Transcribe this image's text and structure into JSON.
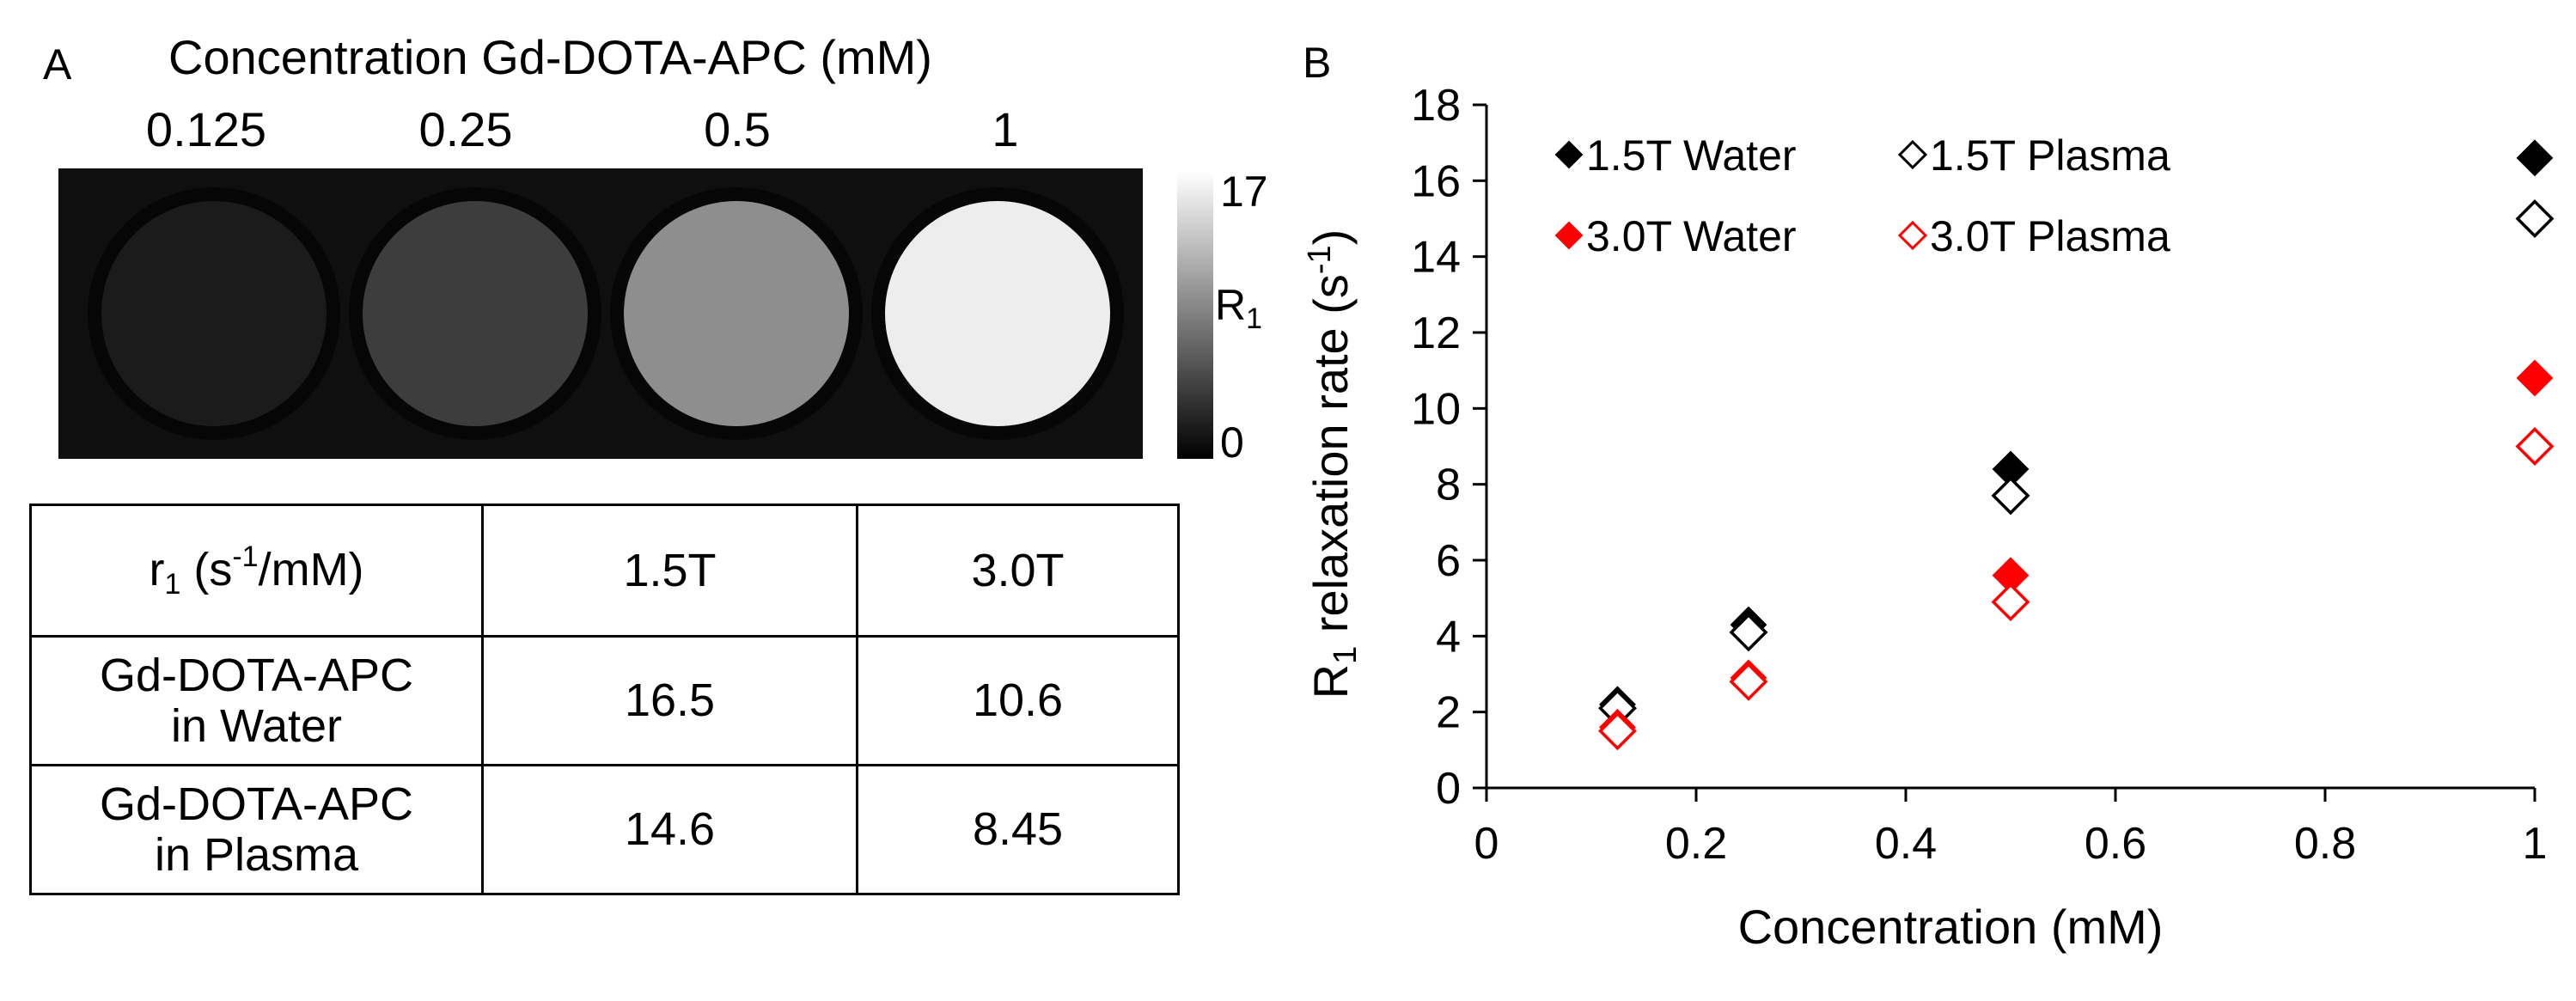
{
  "panel_a": {
    "label": "A",
    "title": "Concentration Gd-DOTA-APC (mM)",
    "concentrations": [
      "0.125",
      "0.25",
      "0.5",
      "1"
    ],
    "phantom_gray_levels": [
      "#1b1b1b",
      "#3d3d3d",
      "#8e8e8e",
      "#ededed"
    ],
    "colorbar": {
      "max_label": "17",
      "min_label": "0",
      "label_main": "R",
      "label_sub": "1"
    },
    "table": {
      "header": {
        "unit_main": "r",
        "unit_sub": "1",
        "unit_open": " (s",
        "unit_sup": "-1",
        "unit_close": "/mM)",
        "col1": "1.5T",
        "col2": "3.0T"
      },
      "rows": [
        {
          "line1": "Gd-DOTA-APC",
          "line2": "in Water",
          "v15": "16.5",
          "v30": "10.6"
        },
        {
          "line1": "Gd-DOTA-APC",
          "line2": "in Plasma",
          "v15": "14.6",
          "v30": "8.45"
        }
      ]
    }
  },
  "chart_data": {
    "type": "scatter",
    "panel_label": "B",
    "xlabel": "Concentration (mM)",
    "ylabel_parts": {
      "main": "R",
      "sub": "1",
      "rest": " relaxation rate (s",
      "sup": "-1",
      "close": ")"
    },
    "xlim": [
      0,
      1
    ],
    "ylim": [
      0,
      18
    ],
    "xticks": [
      0,
      0.2,
      0.4,
      0.6,
      0.8,
      1
    ],
    "xtick_labels": [
      "0",
      "0.2",
      "0.4",
      "0.6",
      "0.8",
      "1"
    ],
    "yticks": [
      0,
      2,
      4,
      6,
      8,
      10,
      12,
      14,
      16,
      18
    ],
    "ytick_labels": [
      "0",
      "2",
      "4",
      "6",
      "8",
      "10",
      "12",
      "14",
      "16",
      "18"
    ],
    "grid": false,
    "legend_position": "top-left",
    "series": [
      {
        "name": "1.5T Water",
        "color": "#000000",
        "filled": true,
        "x": [
          0.125,
          0.25,
          0.5,
          1
        ],
        "y": [
          2.2,
          4.3,
          8.4,
          16.6
        ]
      },
      {
        "name": "1.5T Plasma",
        "color": "#000000",
        "filled": false,
        "x": [
          0.125,
          0.25,
          0.5,
          1
        ],
        "y": [
          2.1,
          4.1,
          7.7,
          15.0
        ]
      },
      {
        "name": "3.0T Water",
        "color": "#ff0000",
        "filled": true,
        "x": [
          0.125,
          0.25,
          0.5,
          1
        ],
        "y": [
          1.6,
          2.9,
          5.6,
          10.8
        ]
      },
      {
        "name": "3.0T Plasma",
        "color": "#ff0000",
        "filled": false,
        "x": [
          0.125,
          0.25,
          0.5,
          1
        ],
        "y": [
          1.5,
          2.8,
          4.9,
          9.0
        ]
      }
    ]
  }
}
